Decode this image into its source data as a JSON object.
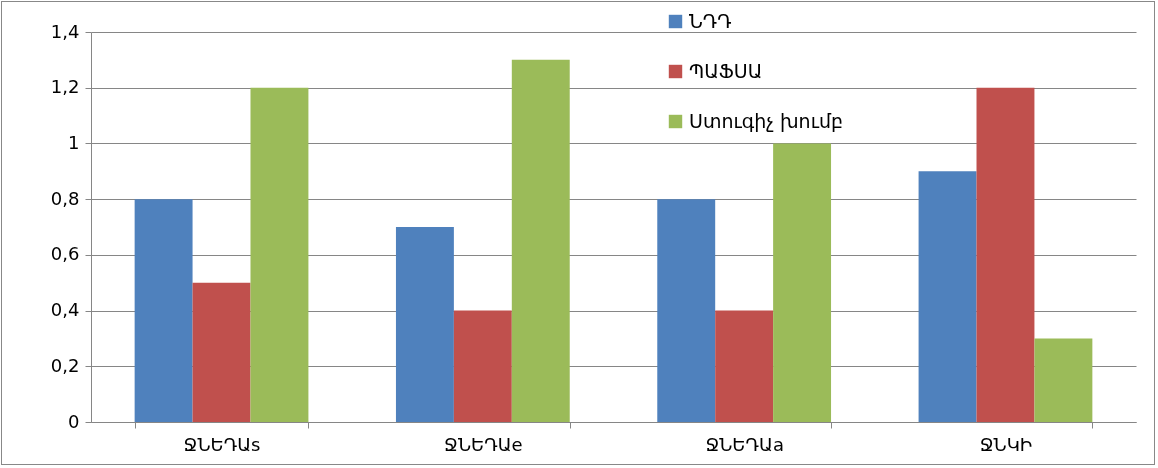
{
  "chart_data": {
    "type": "bar",
    "categories": [
      "ՋՆԵԴԱs",
      "ՋՆԵԴԱe",
      "ՋՆԵԴԱa",
      "ՋՆԿԻ"
    ],
    "series": [
      {
        "name": "ՆԴԴ",
        "color": "#4f81bd",
        "values": [
          0.8,
          0.7,
          0.8,
          0.9
        ]
      },
      {
        "name": "ՊԱՖՍԱ",
        "color": "#c0504d",
        "values": [
          0.5,
          0.4,
          0.4,
          1.2
        ]
      },
      {
        "name": "Ստուգիչ խումբ",
        "color": "#9bbb59",
        "values": [
          1.2,
          1.3,
          1.0,
          0.3
        ]
      }
    ],
    "ylim": [
      0,
      1.4
    ],
    "yticks": [
      0,
      {
        "value": 0.2,
        "label": "0,2"
      },
      {
        "value": 0.4,
        "label": "0,4"
      },
      {
        "value": 0.6,
        "label": "0,6"
      },
      {
        "value": 0.8,
        "label": "0,8"
      },
      1,
      {
        "value": 1.2,
        "label": "1,2"
      },
      {
        "value": 1.4,
        "label": "1,4"
      }
    ],
    "grid": "y",
    "legend": "top"
  }
}
